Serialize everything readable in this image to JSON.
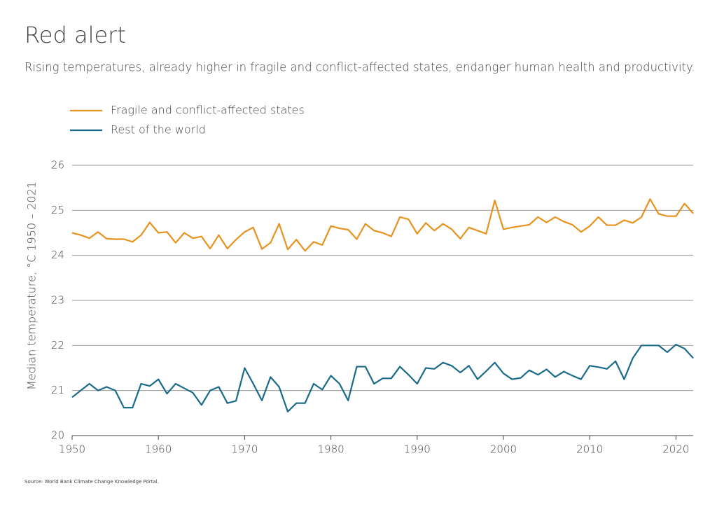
{
  "chart_data": {
    "type": "line",
    "title": "Red alert",
    "subtitle": "Rising temperatures, already higher in fragile and conflict-affected states, endanger human health and productivity.",
    "y_label": "Median temperature, °C 1950 – 2021",
    "source": "Source: World Bank Climate Change Knowledge Portal.",
    "x": [
      1950,
      1951,
      1952,
      1953,
      1954,
      1955,
      1956,
      1957,
      1958,
      1959,
      1960,
      1961,
      1962,
      1963,
      1964,
      1965,
      1966,
      1967,
      1968,
      1969,
      1970,
      1971,
      1972,
      1973,
      1974,
      1975,
      1976,
      1977,
      1978,
      1979,
      1980,
      1981,
      1982,
      1983,
      1984,
      1985,
      1986,
      1987,
      1988,
      1989,
      1990,
      1991,
      1992,
      1993,
      1994,
      1995,
      1996,
      1997,
      1998,
      1999,
      2000,
      2001,
      2002,
      2003,
      2004,
      2005,
      2006,
      2007,
      2008,
      2009,
      2010,
      2011,
      2012,
      2013,
      2014,
      2015,
      2016,
      2017,
      2018,
      2019,
      2020,
      2021,
      2022
    ],
    "series": [
      {
        "name": "Fragile and conflict-affected states",
        "color": "#e8921e",
        "values": [
          24.5,
          24.45,
          24.38,
          24.52,
          24.37,
          24.36,
          24.36,
          24.3,
          24.45,
          24.73,
          24.5,
          24.52,
          24.28,
          24.5,
          24.38,
          24.42,
          24.15,
          24.45,
          24.15,
          24.35,
          24.52,
          24.62,
          24.14,
          24.28,
          24.7,
          24.13,
          24.35,
          24.1,
          24.3,
          24.23,
          24.65,
          24.6,
          24.57,
          24.36,
          24.7,
          24.55,
          24.5,
          24.42,
          24.85,
          24.8,
          24.48,
          24.72,
          24.55,
          24.7,
          24.58,
          24.37,
          24.62,
          24.55,
          24.48,
          25.22,
          24.58,
          24.62,
          24.65,
          24.68,
          24.85,
          24.73,
          24.85,
          24.75,
          24.68,
          24.52,
          24.65,
          24.85,
          24.67,
          24.67,
          24.78,
          24.72,
          24.85,
          25.25,
          24.92,
          24.87,
          24.87,
          25.15,
          24.93
        ]
      },
      {
        "name": "Rest of the world",
        "color": "#1a6b8a",
        "values": [
          20.85,
          21.0,
          21.15,
          21.0,
          21.08,
          21.0,
          20.62,
          20.62,
          21.15,
          21.1,
          21.25,
          20.93,
          21.15,
          21.05,
          20.95,
          20.68,
          21.0,
          21.08,
          20.72,
          20.77,
          21.5,
          21.15,
          20.78,
          21.3,
          21.08,
          20.53,
          20.72,
          20.72,
          21.15,
          21.02,
          21.33,
          21.15,
          20.78,
          21.53,
          21.53,
          21.15,
          21.27,
          21.27,
          21.53,
          21.35,
          21.15,
          21.5,
          21.48,
          21.62,
          21.55,
          21.4,
          21.55,
          21.25,
          21.43,
          21.62,
          21.38,
          21.25,
          21.28,
          21.45,
          21.35,
          21.47,
          21.3,
          21.42,
          21.33,
          21.25,
          21.55,
          21.52,
          21.48,
          21.65,
          21.25,
          21.72,
          22.0,
          22.0,
          22.0,
          21.85,
          22.02,
          21.93,
          21.72
        ]
      }
    ],
    "xlim": [
      1950,
      2022
    ],
    "xticks": [
      1950,
      1960,
      1970,
      1980,
      1990,
      2000,
      2010,
      2020
    ],
    "ylim": [
      20,
      26
    ],
    "yticks": [
      20,
      21,
      22,
      23,
      24,
      25,
      26
    ],
    "grid": true,
    "legend": "top-left"
  }
}
